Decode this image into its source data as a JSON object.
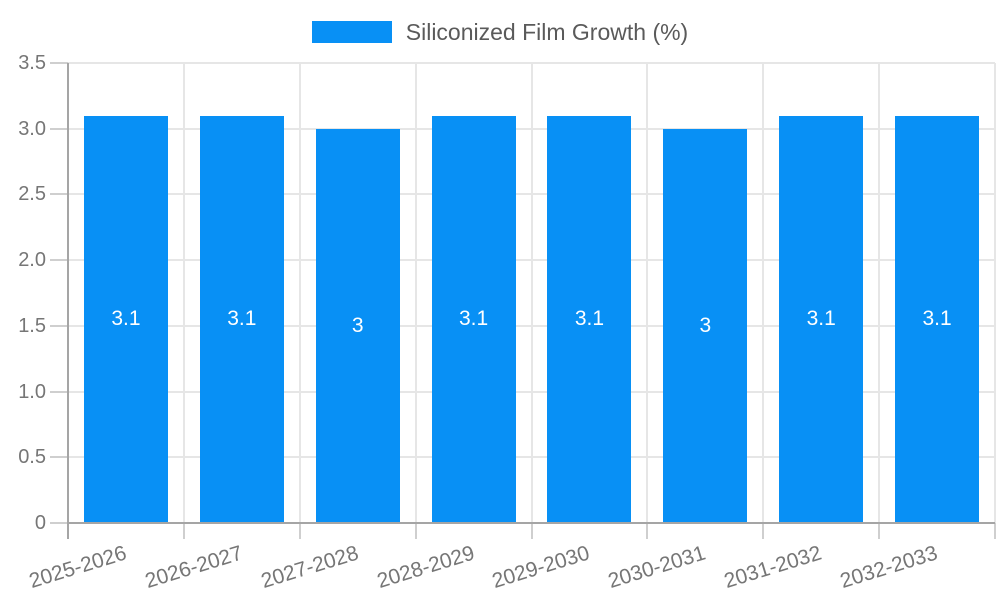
{
  "legend": {
    "label": "Siliconized Film Growth (%)"
  },
  "colors": {
    "bar": "#0890f5",
    "grid": "#e6e6e6",
    "tick": "#cfcfcf",
    "axis": "#a5a5a5",
    "axis_text": "#767676",
    "legend_text": "#5a5a5a",
    "value_text": "#ffffff",
    "background": "#ffffff"
  },
  "chart_data": {
    "type": "bar",
    "title": "",
    "xlabel": "",
    "ylabel": "",
    "categories": [
      "2025-2026",
      "2026-2027",
      "2027-2028",
      "2028-2029",
      "2029-2030",
      "2030-2031",
      "2031-2032",
      "2032-2033"
    ],
    "series": [
      {
        "name": "Siliconized Film Growth (%)",
        "values": [
          3.1,
          3.1,
          3,
          3.1,
          3.1,
          3,
          3.1,
          3.1
        ]
      }
    ],
    "value_labels": [
      "3.1",
      "3.1",
      "3",
      "3.1",
      "3.1",
      "3",
      "3.1",
      "3.1"
    ],
    "ylim": [
      0,
      3.5
    ],
    "ytick_step": 0.5,
    "ytick_labels": [
      "0",
      "0.5",
      "1.0",
      "1.5",
      "2.0",
      "2.5",
      "3.0",
      "3.5"
    ],
    "grid": true,
    "legend_position": "top-center",
    "x_label_rotation_deg": -17
  }
}
